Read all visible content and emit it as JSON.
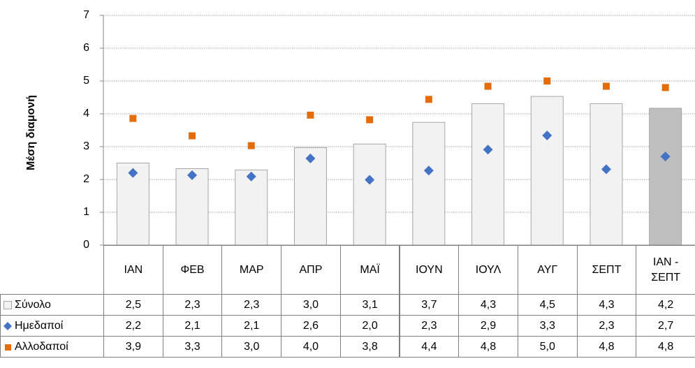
{
  "chart_data": {
    "type": "bar",
    "y_axis_label": "Μέση διαμονή",
    "categories": [
      "ΙΑΝ",
      "ΦΕΒ",
      "ΜΑΡ",
      "ΑΠΡ",
      "ΜΑΪ",
      "ΙΟΥΝ",
      "ΙΟΥΛ",
      "ΑΥΓ",
      "ΣΕΠΤ",
      "ΙΑΝ - ΣΕΠΤ"
    ],
    "series": [
      {
        "name": "Σύνολο",
        "type": "bar",
        "color": "#f2f2f2",
        "colors": [
          "#f2f2f2",
          "#f2f2f2",
          "#f2f2f2",
          "#f2f2f2",
          "#f2f2f2",
          "#f2f2f2",
          "#f2f2f2",
          "#f2f2f2",
          "#f2f2f2",
          "#bfbfbf"
        ],
        "values": [
          2.5,
          2.33,
          2.29,
          2.97,
          3.08,
          3.74,
          4.31,
          4.53,
          4.31,
          4.17
        ],
        "value_labels": [
          "2,5",
          "2,3",
          "2,3",
          "3,0",
          "3,1",
          "3,7",
          "4,3",
          "4,5",
          "4,3",
          "4,2"
        ]
      },
      {
        "name": "Ημεδαποί",
        "type": "diamond",
        "color": "#4472c4",
        "values": [
          2.2,
          2.13,
          2.09,
          2.64,
          1.99,
          2.27,
          2.91,
          3.34,
          2.31,
          2.7
        ],
        "value_labels": [
          "2,2",
          "2,1",
          "2,1",
          "2,6",
          "2,0",
          "2,3",
          "2,9",
          "3,3",
          "2,3",
          "2,7"
        ]
      },
      {
        "name": "Αλλοδαποί",
        "type": "square",
        "color": "#e46c0a",
        "values": [
          3.86,
          3.33,
          3.03,
          3.96,
          3.82,
          4.44,
          4.84,
          5.0,
          4.84,
          4.8
        ],
        "value_labels": [
          "3,9",
          "3,3",
          "3,0",
          "4,0",
          "3,8",
          "4,4",
          "4,8",
          "5,0",
          "4,8",
          "4,8"
        ]
      }
    ],
    "ylim": [
      0,
      7
    ],
    "yticks": [
      0,
      1,
      2,
      3,
      4,
      5,
      6,
      7
    ],
    "grid": true
  }
}
